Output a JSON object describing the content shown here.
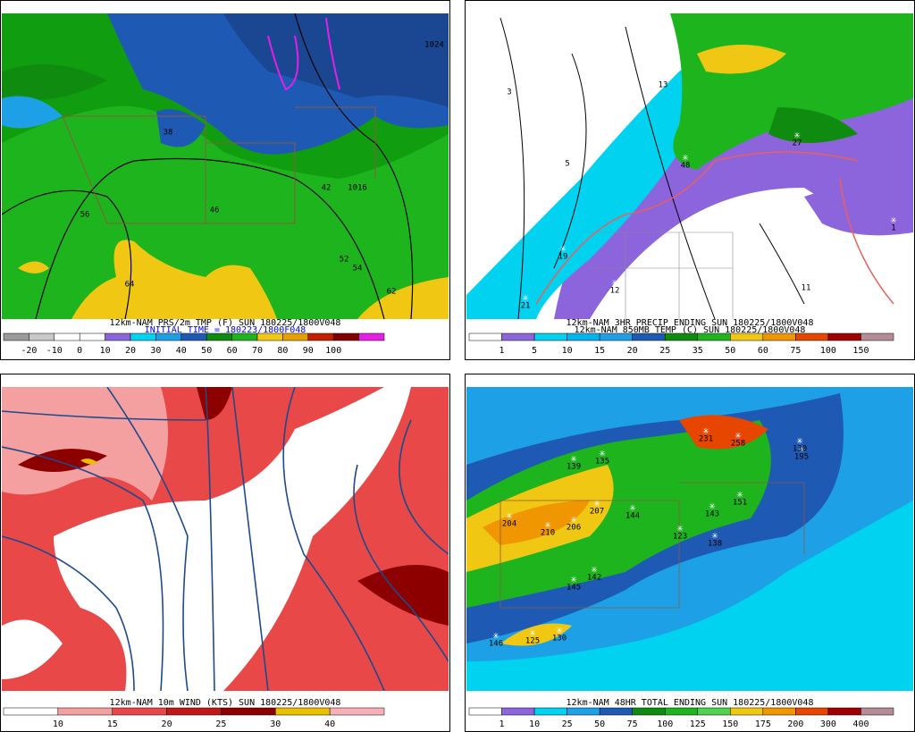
{
  "panels": [
    {
      "caption": [
        "12km-NAM PRS/2m TMP (F) SUN 180225/1800V048",
        "INITIAL TIME = 180223/1800F048"
      ],
      "colorbar": {
        "labels": [
          -20,
          -10,
          0,
          10,
          20,
          30,
          40,
          50,
          60,
          70,
          80,
          90,
          100
        ],
        "colors": [
          "#9b9b9b",
          "#c8c8c8",
          "#ffffff",
          "#ffffff",
          "#8c64dc",
          "#00d2f0",
          "#1ea0e6",
          "#1e5ab4",
          "#0f8c0f",
          "#1eb41e",
          "#f0c814",
          "#e6a000",
          "#c81e00",
          "#820000",
          "#e61ee6"
        ]
      },
      "map_labels": [
        "1024",
        "1016",
        "56",
        "64",
        "42",
        "46",
        "38",
        "52",
        "54",
        "62"
      ]
    },
    {
      "caption": [
        "12km-NAM 3HR PRECIP ENDING SUN 180225/1800V048",
        "12km-NAM 850MB TEMP (C) SUN 180225/1800V048"
      ],
      "colorbar": {
        "labels": [
          1,
          5,
          10,
          15,
          20,
          25,
          35,
          50,
          60,
          75,
          100,
          150
        ],
        "colors": [
          "#ffffff",
          "#8c64dc",
          "#00d2f0",
          "#00b4f0",
          "#1ea0e6",
          "#1e5ab4",
          "#0f8c0f",
          "#1eb41e",
          "#f0c814",
          "#f09600",
          "#e64600",
          "#a00000",
          "#b48c96"
        ]
      },
      "map_labels": [
        "3",
        "5",
        "13",
        "48",
        "27",
        "19",
        "21",
        "12",
        "11",
        "1"
      ]
    },
    {
      "caption": [
        "12km-NAM 10m WIND (KTS) SUN 180225/1800V048"
      ],
      "colorbar": {
        "labels": [
          10,
          15,
          20,
          25,
          30,
          40
        ],
        "colors": [
          "#ffffff",
          "#f4a0a0",
          "#e84848",
          "#c01818",
          "#8c0000",
          "#e8c000",
          "#f8b0b8"
        ]
      },
      "map_labels": []
    },
    {
      "caption": [
        "12km-NAM 48HR TOTAL ENDING SUN 180225/1800V048"
      ],
      "colorbar": {
        "labels": [
          1,
          10,
          25,
          50,
          75,
          100,
          125,
          150,
          175,
          200,
          300,
          400
        ],
        "colors": [
          "#ffffff",
          "#8c64dc",
          "#00d2f0",
          "#1ea0e6",
          "#1e5ab4",
          "#0f8c0f",
          "#1eb41e",
          "#50d250",
          "#f0c814",
          "#f09600",
          "#e64600",
          "#a00000",
          "#b48c96"
        ]
      },
      "map_labels": [
        "231",
        "258",
        "139",
        "135",
        "195",
        "207",
        "204",
        "210",
        "206",
        "144",
        "143",
        "151",
        "123",
        "138",
        "142",
        "145",
        "146",
        "125",
        "130",
        "130"
      ]
    }
  ]
}
